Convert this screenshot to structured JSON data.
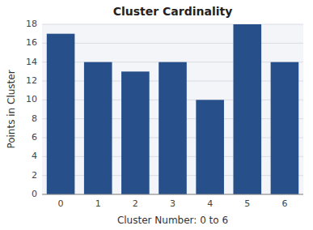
{
  "chart_data": {
    "type": "bar",
    "title": "Cluster Cardinality",
    "xlabel": "Cluster Number: 0 to 6",
    "ylabel": "Points in Cluster",
    "categories": [
      "0",
      "1",
      "2",
      "3",
      "4",
      "5",
      "6"
    ],
    "values": [
      17,
      14,
      13,
      14,
      10,
      18,
      14
    ],
    "color": "#27508b",
    "ylim": [
      0,
      18
    ],
    "yticks": [
      0,
      2,
      4,
      6,
      8,
      10,
      12,
      14,
      16,
      18
    ],
    "grid": true
  }
}
